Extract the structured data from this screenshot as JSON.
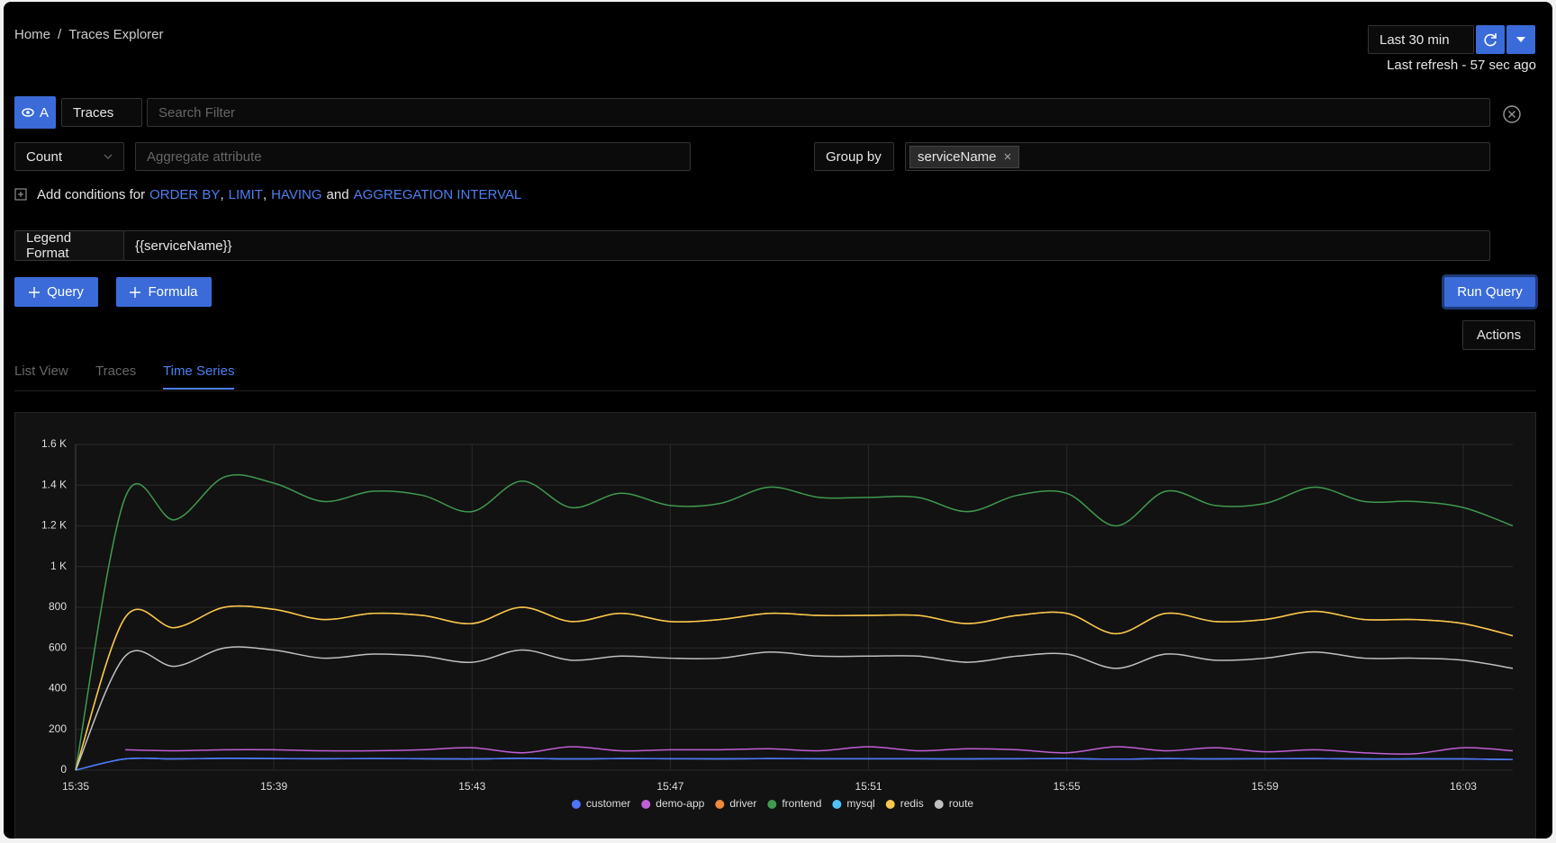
{
  "header": {
    "breadcrumb": [
      "Home",
      "Traces Explorer"
    ],
    "separator": "/",
    "time_range": "Last 30 min",
    "last_refresh": "Last refresh - 57 sec ago"
  },
  "query": {
    "label": "A",
    "source": "Traces",
    "search_placeholder": "Search Filter",
    "aggregate": "Count",
    "aggregate_placeholder": "Aggregate attribute",
    "group_by_label": "Group by",
    "group_by_value": "serviceName",
    "conditions": [
      {
        "text": "Add conditions for",
        "link": false
      },
      {
        "text": "ORDER BY",
        "link": true
      },
      {
        "text": ",",
        "link": false
      },
      {
        "text": "LIMIT",
        "link": true
      },
      {
        "text": ",",
        "link": false
      },
      {
        "text": "HAVING",
        "link": true
      },
      {
        "text": "and",
        "link": false
      },
      {
        "text": "AGGREGATION INTERVAL",
        "link": true
      }
    ],
    "legend_format_label": "Legend Format",
    "legend_format_value": "{{serviceName}}"
  },
  "buttons": {
    "add_query": "Query",
    "add_formula": "Formula",
    "run": "Run Query",
    "actions": "Actions"
  },
  "tabs": [
    "List View",
    "Traces",
    "Time Series"
  ],
  "active_tab": 2,
  "chart_data": {
    "type": "line",
    "categories": [
      "15:35",
      null,
      null,
      null,
      "15:39",
      null,
      null,
      null,
      "15:43",
      null,
      null,
      null,
      "15:47",
      null,
      null,
      null,
      "15:51",
      null,
      null,
      null,
      "15:55",
      null,
      null,
      null,
      "15:59",
      null,
      null,
      null,
      "16:03",
      null
    ],
    "ylim": [
      0,
      1600
    ],
    "yticks": [
      0,
      200,
      400,
      600,
      800,
      {
        "value": 1000,
        "label": "1 K"
      },
      {
        "value": 1200,
        "label": "1.2 K"
      },
      {
        "value": 1400,
        "label": "1.4 K"
      },
      {
        "value": 1600,
        "label": "1.6 K"
      }
    ],
    "grid": true,
    "legend": "bottom",
    "series": [
      {
        "name": "customer",
        "color": "#4e74f8",
        "values": [
          0,
          55,
          55,
          58,
          57,
          56,
          57,
          56,
          55,
          58,
          55,
          57,
          56,
          55,
          57,
          56,
          56,
          56,
          55,
          56,
          57,
          54,
          57,
          55,
          56,
          57,
          55,
          55,
          55,
          52
        ]
      },
      {
        "name": "demo-app",
        "color": "#c15fd6",
        "values": [
          null,
          100,
          95,
          100,
          100,
          95,
          95,
          100,
          110,
          85,
          115,
          95,
          100,
          100,
          105,
          95,
          115,
          95,
          105,
          100,
          85,
          115,
          95,
          110,
          90,
          100,
          85,
          80,
          110,
          95
        ]
      },
      {
        "name": "driver",
        "color": "#f0883e",
        "values": [
          0,
          750,
          700,
          800,
          790,
          740,
          770,
          760,
          720,
          800,
          730,
          770,
          730,
          740,
          770,
          760,
          760,
          760,
          720,
          760,
          770,
          670,
          770,
          730,
          740,
          780,
          740,
          740,
          720,
          660
        ]
      },
      {
        "name": "frontend",
        "color": "#3f9a4f",
        "values": [
          0,
          1340,
          1230,
          1440,
          1410,
          1320,
          1370,
          1350,
          1270,
          1420,
          1290,
          1360,
          1300,
          1310,
          1390,
          1340,
          1340,
          1340,
          1270,
          1350,
          1360,
          1200,
          1370,
          1300,
          1310,
          1390,
          1320,
          1320,
          1290,
          1200
        ]
      },
      {
        "name": "mysql",
        "color": "#4fc3f7",
        "values": [
          0,
          55,
          55,
          58,
          57,
          56,
          57,
          56,
          55,
          58,
          55,
          57,
          56,
          55,
          57,
          56,
          56,
          56,
          55,
          56,
          57,
          54,
          57,
          55,
          56,
          57,
          55,
          55,
          55,
          52
        ]
      },
      {
        "name": "redis",
        "color": "#f5c84c",
        "values": [
          0,
          750,
          700,
          800,
          790,
          740,
          770,
          760,
          720,
          800,
          730,
          770,
          730,
          740,
          770,
          760,
          760,
          760,
          720,
          760,
          770,
          670,
          770,
          730,
          740,
          780,
          740,
          740,
          720,
          660
        ]
      },
      {
        "name": "route",
        "color": "#c0c0c0",
        "values": [
          0,
          560,
          510,
          600,
          590,
          550,
          570,
          560,
          530,
          590,
          540,
          560,
          550,
          550,
          580,
          560,
          560,
          560,
          530,
          560,
          570,
          500,
          570,
          540,
          550,
          580,
          550,
          550,
          540,
          500
        ]
      }
    ]
  }
}
